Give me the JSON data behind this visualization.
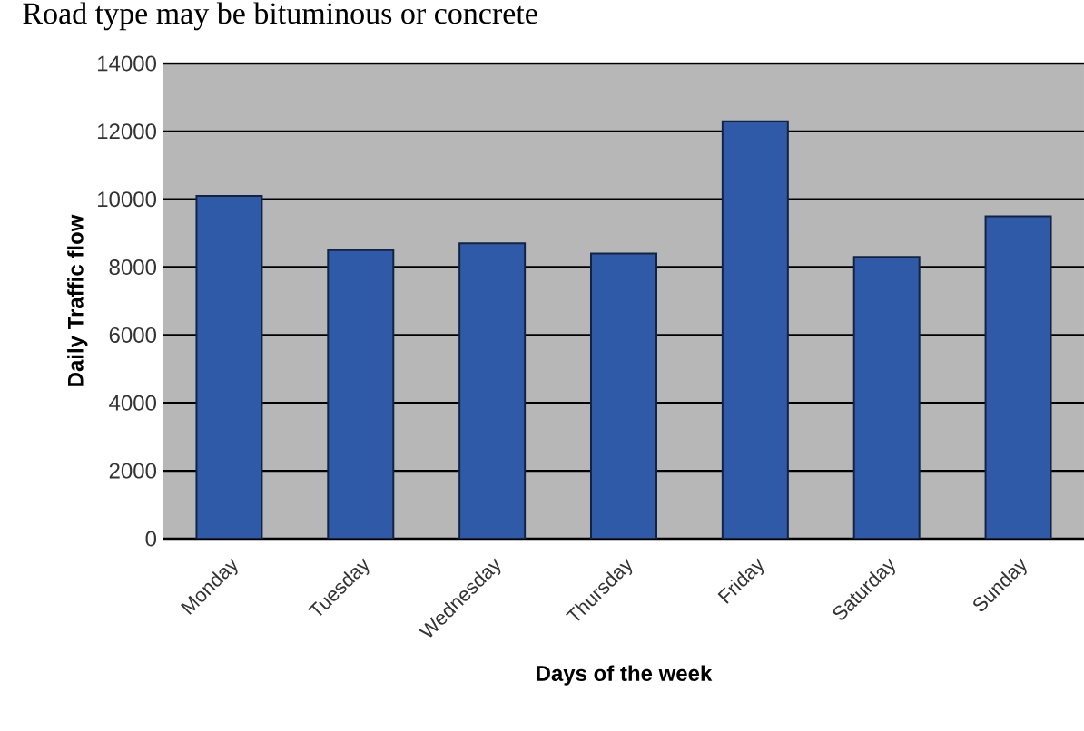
{
  "chart_data": {
    "type": "bar",
    "title": "Road type may be bituminous or concrete",
    "xlabel": "Days of the week",
    "ylabel": "Daily Traffic flow",
    "categories": [
      "Monday",
      "Tuesday",
      "Wednesday",
      "Thursday",
      "Friday",
      "Saturday",
      "Sunday"
    ],
    "values": [
      10100,
      8500,
      8700,
      8400,
      12300,
      8300,
      9500
    ],
    "color": "#2f5aa8",
    "ylim": [
      0,
      14000
    ],
    "yticks": [
      0,
      2000,
      4000,
      6000,
      8000,
      10000,
      12000,
      14000
    ],
    "grid": "y"
  }
}
